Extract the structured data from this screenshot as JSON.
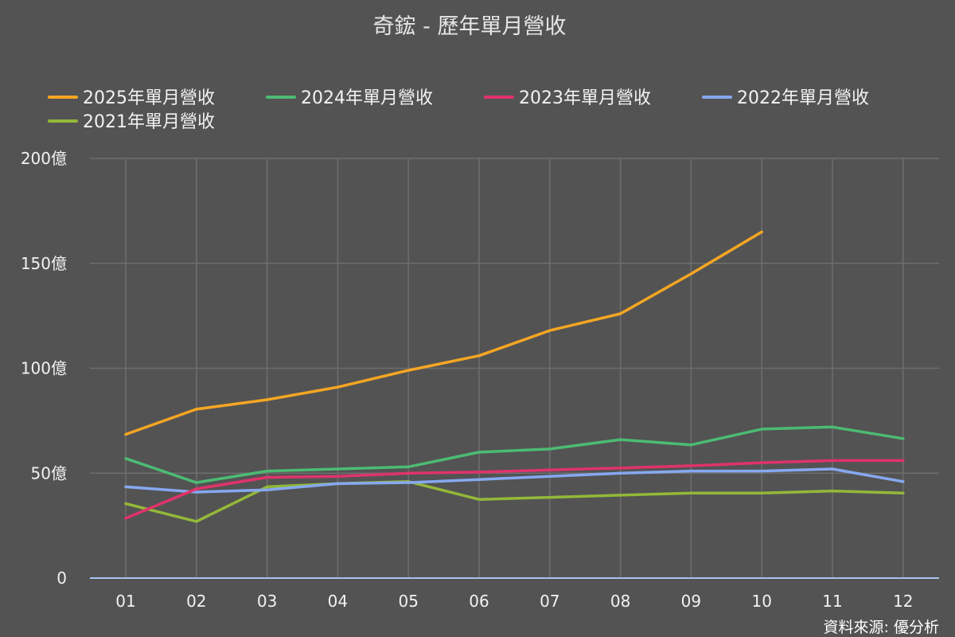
{
  "chart_data": {
    "type": "line",
    "title": "奇鋐 - 歷年單月營收",
    "source": "資料來源: 優分析",
    "xlabel": "",
    "ylabel": "",
    "categories": [
      "01",
      "02",
      "03",
      "04",
      "05",
      "06",
      "07",
      "08",
      "09",
      "10",
      "11",
      "12"
    ],
    "ylim": [
      0,
      200
    ],
    "yticks": [
      {
        "value": 0,
        "label": "0"
      },
      {
        "value": 50,
        "label": "50億"
      },
      {
        "value": 100,
        "label": "100億"
      },
      {
        "value": 150,
        "label": "150億"
      },
      {
        "value": 200,
        "label": "200億"
      }
    ],
    "grid": true,
    "legend_position": "top-left",
    "axis_color": "#a8c4f0",
    "series": [
      {
        "name": "2025年單月營收",
        "color": "#f5a623",
        "values": [
          68.5,
          80.5,
          85,
          91,
          99,
          106,
          118,
          126,
          145,
          165,
          null,
          null
        ]
      },
      {
        "name": "2024年單月營收",
        "color": "#4cbb73",
        "values": [
          57,
          45.5,
          51,
          52,
          53,
          60,
          61.5,
          66,
          63.5,
          71,
          72,
          66.5
        ]
      },
      {
        "name": "2023年單月營收",
        "color": "#e0336a",
        "values": [
          28.5,
          42.5,
          48,
          48.5,
          50,
          50.5,
          51.5,
          52.5,
          53.5,
          55,
          56,
          56
        ]
      },
      {
        "name": "2022年單月營收",
        "color": "#86a8f0",
        "values": [
          43.5,
          41,
          42,
          45,
          45.5,
          47,
          48.5,
          50,
          51,
          51,
          52,
          46
        ]
      },
      {
        "name": "2021年單月營收",
        "color": "#93b838",
        "values": [
          35.5,
          27,
          43.5,
          45,
          46,
          37.5,
          38.5,
          39.5,
          40.5,
          40.5,
          41.5,
          40.5
        ]
      }
    ]
  }
}
